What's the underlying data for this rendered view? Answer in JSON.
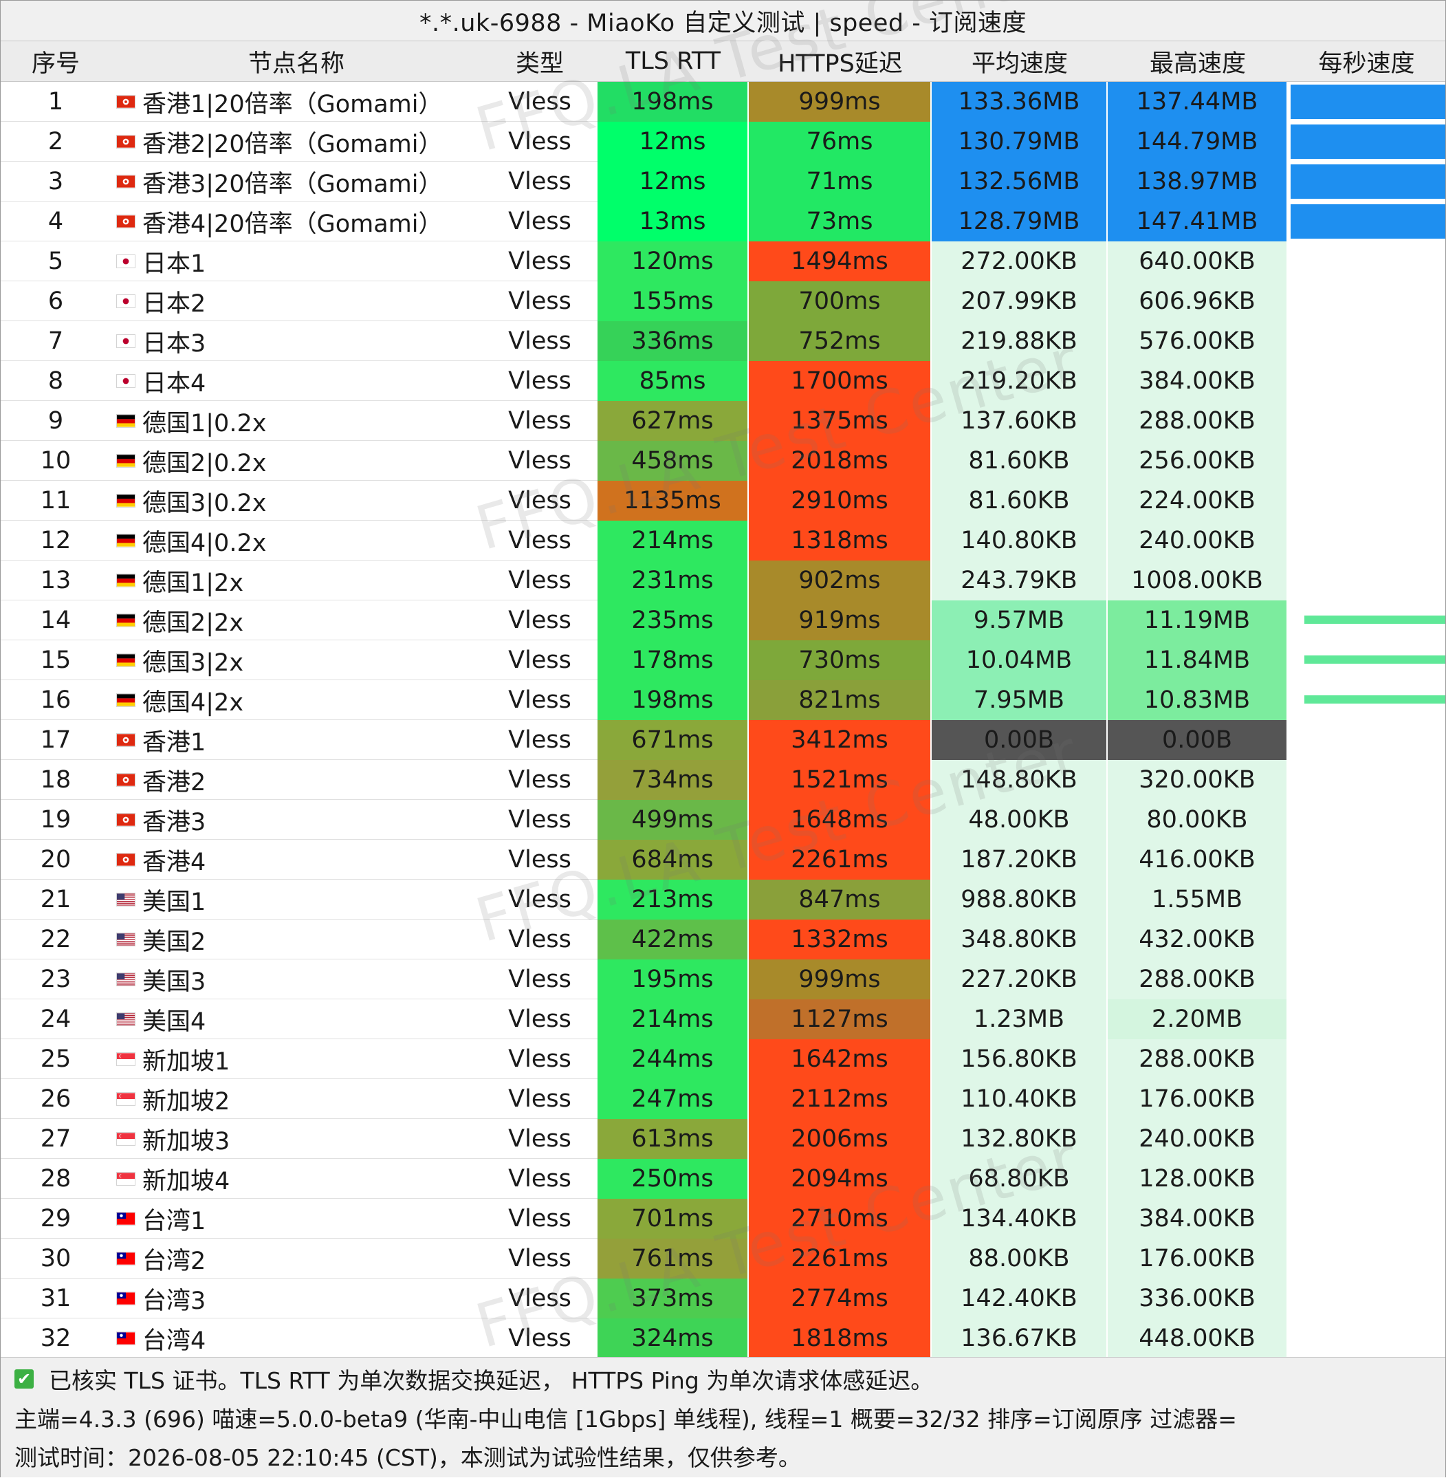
{
  "window": {
    "title": "*.*.uk-6988 - MiaoKo 自定义测试 | speed - 订阅速度"
  },
  "columns": [
    "序号",
    "节点名称",
    "类型",
    "TLS RTT",
    "HTTPS延迟",
    "平均速度",
    "最高速度",
    "每秒速度"
  ],
  "colors": {
    "rtt_green": "#22dd64",
    "https_orange_red": "#ff4a1a",
    "speed_blue": "#1e8ff0",
    "speed_light": "#dff7e8",
    "speed_medium": "#8cefb4",
    "speed_zero": "#555555"
  },
  "rows": [
    {
      "no": "1",
      "flag": "hk",
      "name": "香港1|20倍率（Gomami）",
      "type": "Vless",
      "rtt": "198ms",
      "https": "999ms",
      "avg": "133.36MB",
      "max": "137.44MB",
      "rtt_c": "#22dd64",
      "https_c": "#a88a2a",
      "avg_c": "#1e8ff0",
      "max_c": "#1e8ff0",
      "graph": "blue"
    },
    {
      "no": "2",
      "flag": "hk",
      "name": "香港2|20倍率（Gomami）",
      "type": "Vless",
      "rtt": "12ms",
      "https": "76ms",
      "avg": "130.79MB",
      "max": "144.79MB",
      "rtt_c": "#00ff6a",
      "https_c": "#22e864",
      "avg_c": "#1e8ff0",
      "max_c": "#1e8ff0",
      "graph": "blue"
    },
    {
      "no": "3",
      "flag": "hk",
      "name": "香港3|20倍率（Gomami）",
      "type": "Vless",
      "rtt": "12ms",
      "https": "71ms",
      "avg": "132.56MB",
      "max": "138.97MB",
      "rtt_c": "#00ff6a",
      "https_c": "#22e864",
      "avg_c": "#1e8ff0",
      "max_c": "#1e8ff0",
      "graph": "blue"
    },
    {
      "no": "4",
      "flag": "hk",
      "name": "香港4|20倍率（Gomami）",
      "type": "Vless",
      "rtt": "13ms",
      "https": "73ms",
      "avg": "128.79MB",
      "max": "147.41MB",
      "rtt_c": "#00ff6a",
      "https_c": "#22e864",
      "avg_c": "#1e8ff0",
      "max_c": "#1e8ff0",
      "graph": "blue"
    },
    {
      "no": "5",
      "flag": "jp",
      "name": "日本1",
      "type": "Vless",
      "rtt": "120ms",
      "https": "1494ms",
      "avg": "272.00KB",
      "max": "640.00KB",
      "rtt_c": "#2ee860",
      "https_c": "#ff4a1a",
      "avg_c": "#dff7e8",
      "max_c": "#dff7e8",
      "graph": "none"
    },
    {
      "no": "6",
      "flag": "jp",
      "name": "日本2",
      "type": "Vless",
      "rtt": "155ms",
      "https": "700ms",
      "avg": "207.99KB",
      "max": "606.96KB",
      "rtt_c": "#2ee860",
      "https_c": "#7ea83a",
      "avg_c": "#dff7e8",
      "max_c": "#dff7e8",
      "graph": "none"
    },
    {
      "no": "7",
      "flag": "jp",
      "name": "日本3",
      "type": "Vless",
      "rtt": "336ms",
      "https": "752ms",
      "avg": "219.88KB",
      "max": "576.00KB",
      "rtt_c": "#36d258",
      "https_c": "#7ea83a",
      "avg_c": "#dff7e8",
      "max_c": "#dff7e8",
      "graph": "none"
    },
    {
      "no": "8",
      "flag": "jp",
      "name": "日本4",
      "type": "Vless",
      "rtt": "85ms",
      "https": "1700ms",
      "avg": "219.20KB",
      "max": "384.00KB",
      "rtt_c": "#2ee860",
      "https_c": "#ff4a1a",
      "avg_c": "#dff7e8",
      "max_c": "#dff7e8",
      "graph": "none"
    },
    {
      "no": "9",
      "flag": "de",
      "name": "德国1|0.2x",
      "type": "Vless",
      "rtt": "627ms",
      "https": "1375ms",
      "avg": "137.60KB",
      "max": "288.00KB",
      "rtt_c": "#8aa83a",
      "https_c": "#ff4a1a",
      "avg_c": "#dff7e8",
      "max_c": "#dff7e8",
      "graph": "none"
    },
    {
      "no": "10",
      "flag": "de",
      "name": "德国2|0.2x",
      "type": "Vless",
      "rtt": "458ms",
      "https": "2018ms",
      "avg": "81.60KB",
      "max": "256.00KB",
      "rtt_c": "#6ab848",
      "https_c": "#ff4a1a",
      "avg_c": "#dff7e8",
      "max_c": "#dff7e8",
      "graph": "none"
    },
    {
      "no": "11",
      "flag": "de",
      "name": "德国3|0.2x",
      "type": "Vless",
      "rtt": "1135ms",
      "https": "2910ms",
      "avg": "81.60KB",
      "max": "224.00KB",
      "rtt_c": "#d0721e",
      "https_c": "#ff4a1a",
      "avg_c": "#dff7e8",
      "max_c": "#dff7e8",
      "graph": "none"
    },
    {
      "no": "12",
      "flag": "de",
      "name": "德国4|0.2x",
      "type": "Vless",
      "rtt": "214ms",
      "https": "1318ms",
      "avg": "140.80KB",
      "max": "240.00KB",
      "rtt_c": "#2ee860",
      "https_c": "#ff4a1a",
      "avg_c": "#dff7e8",
      "max_c": "#dff7e8",
      "graph": "none"
    },
    {
      "no": "13",
      "flag": "de",
      "name": "德国1|2x",
      "type": "Vless",
      "rtt": "231ms",
      "https": "902ms",
      "avg": "243.79KB",
      "max": "1008.00KB",
      "rtt_c": "#2ee860",
      "https_c": "#a88a2a",
      "avg_c": "#dff7e8",
      "max_c": "#dff7e8",
      "graph": "none"
    },
    {
      "no": "14",
      "flag": "de",
      "name": "德国2|2x",
      "type": "Vless",
      "rtt": "235ms",
      "https": "919ms",
      "avg": "9.57MB",
      "max": "11.19MB",
      "rtt_c": "#2ee860",
      "https_c": "#a88a2a",
      "avg_c": "#8cefb4",
      "max_c": "#7cec9e",
      "graph": "green"
    },
    {
      "no": "15",
      "flag": "de",
      "name": "德国3|2x",
      "type": "Vless",
      "rtt": "178ms",
      "https": "730ms",
      "avg": "10.04MB",
      "max": "11.84MB",
      "rtt_c": "#2ee860",
      "https_c": "#7ea83a",
      "avg_c": "#8cefb4",
      "max_c": "#7cec9e",
      "graph": "green"
    },
    {
      "no": "16",
      "flag": "de",
      "name": "德国4|2x",
      "type": "Vless",
      "rtt": "198ms",
      "https": "821ms",
      "avg": "7.95MB",
      "max": "10.83MB",
      "rtt_c": "#2ee860",
      "https_c": "#8aa03a",
      "avg_c": "#8cefb4",
      "max_c": "#7cec9e",
      "graph": "green"
    },
    {
      "no": "17",
      "flag": "hk",
      "name": "香港1",
      "type": "Vless",
      "rtt": "671ms",
      "https": "3412ms",
      "avg": "0.00B",
      "max": "0.00B",
      "rtt_c": "#8aa83a",
      "https_c": "#ff4a1a",
      "avg_c": "#555555",
      "max_c": "#555555",
      "graph": "none"
    },
    {
      "no": "18",
      "flag": "hk",
      "name": "香港2",
      "type": "Vless",
      "rtt": "734ms",
      "https": "1521ms",
      "avg": "148.80KB",
      "max": "320.00KB",
      "rtt_c": "#94a03a",
      "https_c": "#ff4a1a",
      "avg_c": "#dff7e8",
      "max_c": "#dff7e8",
      "graph": "none"
    },
    {
      "no": "19",
      "flag": "hk",
      "name": "香港3",
      "type": "Vless",
      "rtt": "499ms",
      "https": "1648ms",
      "avg": "48.00KB",
      "max": "80.00KB",
      "rtt_c": "#6ab848",
      "https_c": "#ff4a1a",
      "avg_c": "#dff7e8",
      "max_c": "#dff7e8",
      "graph": "none"
    },
    {
      "no": "20",
      "flag": "hk",
      "name": "香港4",
      "type": "Vless",
      "rtt": "684ms",
      "https": "2261ms",
      "avg": "187.20KB",
      "max": "416.00KB",
      "rtt_c": "#8aa83a",
      "https_c": "#ff4a1a",
      "avg_c": "#dff7e8",
      "max_c": "#dff7e8",
      "graph": "none"
    },
    {
      "no": "21",
      "flag": "us",
      "name": "美国1",
      "type": "Vless",
      "rtt": "213ms",
      "https": "847ms",
      "avg": "988.80KB",
      "max": "1.55MB",
      "rtt_c": "#2ee860",
      "https_c": "#8aa03a",
      "avg_c": "#dff7e8",
      "max_c": "#dff7e8",
      "graph": "none"
    },
    {
      "no": "22",
      "flag": "us",
      "name": "美国2",
      "type": "Vless",
      "rtt": "422ms",
      "https": "1332ms",
      "avg": "348.80KB",
      "max": "432.00KB",
      "rtt_c": "#5ec04a",
      "https_c": "#ff4a1a",
      "avg_c": "#dff7e8",
      "max_c": "#dff7e8",
      "graph": "none"
    },
    {
      "no": "23",
      "flag": "us",
      "name": "美国3",
      "type": "Vless",
      "rtt": "195ms",
      "https": "999ms",
      "avg": "227.20KB",
      "max": "288.00KB",
      "rtt_c": "#2ee860",
      "https_c": "#a88a2a",
      "avg_c": "#dff7e8",
      "max_c": "#dff7e8",
      "graph": "none"
    },
    {
      "no": "24",
      "flag": "us",
      "name": "美国4",
      "type": "Vless",
      "rtt": "214ms",
      "https": "1127ms",
      "avg": "1.23MB",
      "max": "2.20MB",
      "rtt_c": "#2ee860",
      "https_c": "#c0702a",
      "avg_c": "#dff7e8",
      "max_c": "#d4f5df",
      "graph": "none"
    },
    {
      "no": "25",
      "flag": "sg",
      "name": "新加坡1",
      "type": "Vless",
      "rtt": "244ms",
      "https": "1642ms",
      "avg": "156.80KB",
      "max": "288.00KB",
      "rtt_c": "#2ee860",
      "https_c": "#ff4a1a",
      "avg_c": "#dff7e8",
      "max_c": "#dff7e8",
      "graph": "none"
    },
    {
      "no": "26",
      "flag": "sg",
      "name": "新加坡2",
      "type": "Vless",
      "rtt": "247ms",
      "https": "2112ms",
      "avg": "110.40KB",
      "max": "176.00KB",
      "rtt_c": "#2ee860",
      "https_c": "#ff4a1a",
      "avg_c": "#dff7e8",
      "max_c": "#dff7e8",
      "graph": "none"
    },
    {
      "no": "27",
      "flag": "sg",
      "name": "新加坡3",
      "type": "Vless",
      "rtt": "613ms",
      "https": "2006ms",
      "avg": "132.80KB",
      "max": "240.00KB",
      "rtt_c": "#8aa83a",
      "https_c": "#ff4a1a",
      "avg_c": "#dff7e8",
      "max_c": "#dff7e8",
      "graph": "none"
    },
    {
      "no": "28",
      "flag": "sg",
      "name": "新加坡4",
      "type": "Vless",
      "rtt": "250ms",
      "https": "2094ms",
      "avg": "68.80KB",
      "max": "128.00KB",
      "rtt_c": "#2ee860",
      "https_c": "#ff4a1a",
      "avg_c": "#dff7e8",
      "max_c": "#dff7e8",
      "graph": "none"
    },
    {
      "no": "29",
      "flag": "tw",
      "name": "台湾1",
      "type": "Vless",
      "rtt": "701ms",
      "https": "2710ms",
      "avg": "134.40KB",
      "max": "384.00KB",
      "rtt_c": "#8aa83a",
      "https_c": "#ff4a1a",
      "avg_c": "#dff7e8",
      "max_c": "#dff7e8",
      "graph": "none"
    },
    {
      "no": "30",
      "flag": "tw",
      "name": "台湾2",
      "type": "Vless",
      "rtt": "761ms",
      "https": "2261ms",
      "avg": "88.00KB",
      "max": "176.00KB",
      "rtt_c": "#94a03a",
      "https_c": "#ff4a1a",
      "avg_c": "#dff7e8",
      "max_c": "#dff7e8",
      "graph": "none"
    },
    {
      "no": "31",
      "flag": "tw",
      "name": "台湾3",
      "type": "Vless",
      "rtt": "373ms",
      "https": "2774ms",
      "avg": "142.40KB",
      "max": "336.00KB",
      "rtt_c": "#4ecc50",
      "https_c": "#ff4a1a",
      "avg_c": "#dff7e8",
      "max_c": "#dff7e8",
      "graph": "none"
    },
    {
      "no": "32",
      "flag": "tw",
      "name": "台湾4",
      "type": "Vless",
      "rtt": "324ms",
      "https": "1818ms",
      "avg": "136.67KB",
      "max": "448.00KB",
      "rtt_c": "#3ed456",
      "https_c": "#ff4a1a",
      "avg_c": "#dff7e8",
      "max_c": "#dff7e8",
      "graph": "none"
    }
  ],
  "watermark": "FFQ.LA Test Center",
  "footer": {
    "check_icon": "checkbox-checked-icon",
    "line1": "已核实 TLS 证书。TLS RTT 为单次数据交换延迟， HTTPS Ping 为单次请求体感延迟。",
    "line2": "主端=4.3.3 (696) 喵速=5.0.0-beta9 (华南-中山电信 [1Gbps] 单线程), 线程=1 概要=32/32 排序=订阅原序 过滤器=",
    "line3": "测试时间：2026-08-05 22:10:45 (CST)，本测试为试验性结果，仅供参考。"
  }
}
